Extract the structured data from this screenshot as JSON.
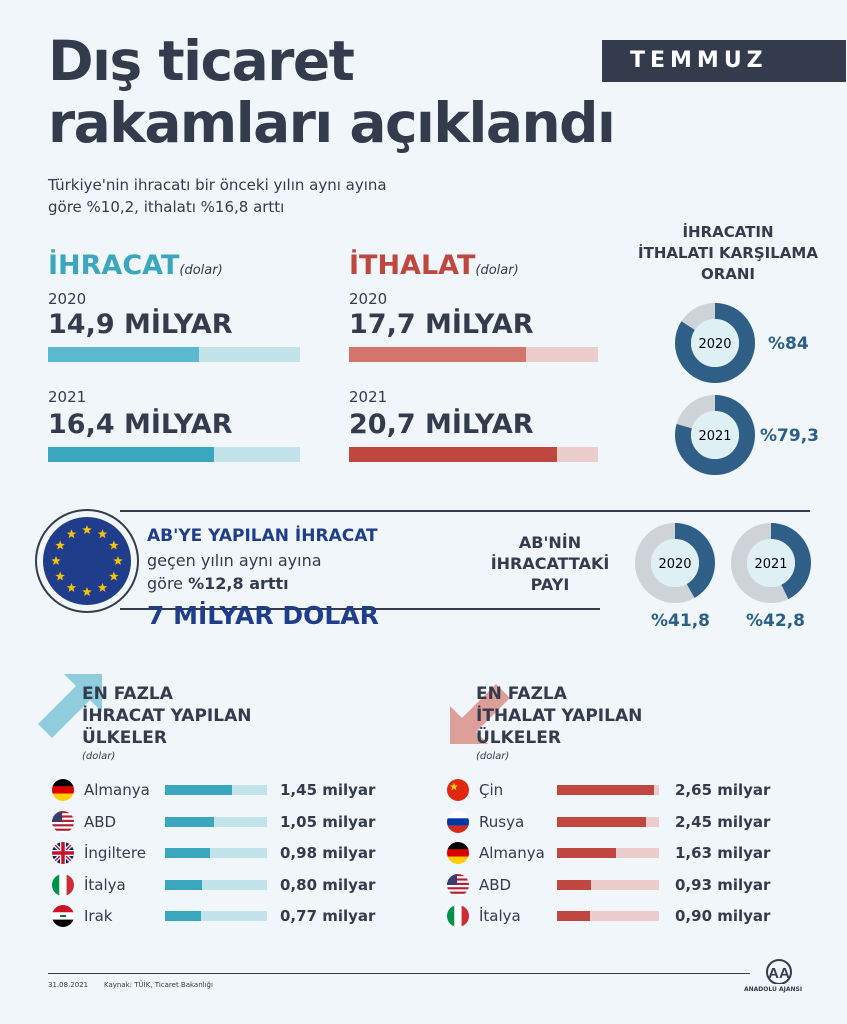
{
  "header": {
    "title_line1": "Dış ticaret",
    "title_line2": "rakamları açıklandı",
    "month": "TEMMUZ",
    "subtitle_line1": "Türkiye'nin ihracatı bir önceki yılın aynı ayına",
    "subtitle_line2": "göre %10,2, ithalatı %16,8 arttı"
  },
  "export": {
    "label": "İHRACAT",
    "unit": "(dolar)",
    "rows": [
      {
        "year": "2020",
        "amount": "14,9 MİLYAR"
      },
      {
        "year": "2021",
        "amount": "16,4 MİLYAR"
      }
    ]
  },
  "import": {
    "label": "İTHALAT",
    "unit": "(dolar)",
    "rows": [
      {
        "year": "2020",
        "amount": "17,7 MİLYAR"
      },
      {
        "year": "2021",
        "amount": "20,7 MİLYAR"
      }
    ]
  },
  "ratio": {
    "title_line1": "İHRACATIN",
    "title_line2": "İTHALATI KARŞILAMA",
    "title_line3": "ORANI",
    "items": [
      {
        "year": "2020",
        "pct_label": "%84"
      },
      {
        "year": "2021",
        "pct_label": "%79,3"
      }
    ]
  },
  "eu": {
    "title": "AB'YE YAPILAN İHRACAT",
    "text_line1": "geçen yılın aynı ayına",
    "text_line2_prefix": "göre ",
    "text_line2_bold": "%12,8 arttı",
    "big": "7 MİLYAR DOLAR",
    "share_line1": "AB'NİN",
    "share_line2": "İHRACATTAKİ",
    "share_line3": "PAYI",
    "share_items": [
      {
        "year": "2020",
        "pct_label": "%41,8"
      },
      {
        "year": "2021",
        "pct_label": "%42,8"
      }
    ]
  },
  "top_export": {
    "title_line1": "EN FAZLA",
    "title_line2": "İHRACAT YAPILAN",
    "title_line3": "ÜLKELER",
    "unit": "(dolar)",
    "countries": [
      {
        "name": "Almanya",
        "value_label": "1,45 milyar",
        "flag": "germany-flag-icon"
      },
      {
        "name": "ABD",
        "value_label": "1,05 milyar",
        "flag": "usa-flag-icon"
      },
      {
        "name": "İngiltere",
        "value_label": "0,98 milyar",
        "flag": "uk-flag-icon"
      },
      {
        "name": "İtalya",
        "value_label": "0,80 milyar",
        "flag": "italy-flag-icon"
      },
      {
        "name": "Irak",
        "value_label": "0,77 milyar",
        "flag": "iraq-flag-icon"
      }
    ]
  },
  "top_import": {
    "title_line1": "EN FAZLA",
    "title_line2": "İTHALAT YAPILAN",
    "title_line3": "ÜLKELER",
    "unit": "(dolar)",
    "countries": [
      {
        "name": "Çin",
        "value_label": "2,65 milyar",
        "flag": "china-flag-icon"
      },
      {
        "name": "Rusya",
        "value_label": "2,45 milyar",
        "flag": "russia-flag-icon"
      },
      {
        "name": "Almanya",
        "value_label": "1,63 milyar",
        "flag": "germany-flag-icon"
      },
      {
        "name": "ABD",
        "value_label": "0,93 milyar",
        "flag": "usa-flag-icon"
      },
      {
        "name": "İtalya",
        "value_label": "0,90 milyar",
        "flag": "italy-flag-icon"
      }
    ]
  },
  "footer": {
    "date": "31.08.2021",
    "source": "Kaynak: TÜİK, Ticaret Bakanlığı",
    "logo_text": "ANADOLU AJANSI"
  },
  "colors": {
    "navy": "#333b4d",
    "export_blue": "#3aa7bf",
    "export_blue_light": "#c3e3ea",
    "export_blue_2020": "#5bb9cf",
    "import_red": "#c04740",
    "import_red_2020": "#d4756d",
    "import_red_light": "#ebcdcc",
    "donut_blue": "#2f5f86",
    "donut_grey": "#cdd3d6",
    "eu_blue": "#1f3d8a"
  },
  "chart_data": [
    {
      "type": "bar",
      "title": "İHRACAT",
      "categories": [
        "2020",
        "2021"
      ],
      "values": [
        14.9,
        16.4
      ],
      "unit": "milyar dolar"
    },
    {
      "type": "bar",
      "title": "İTHALAT",
      "categories": [
        "2020",
        "2021"
      ],
      "values": [
        17.7,
        20.7
      ],
      "unit": "milyar dolar"
    },
    {
      "type": "pie",
      "title": "İHRACATIN İTHALATI KARŞILAMA ORANI",
      "categories": [
        "2020",
        "2021"
      ],
      "values": [
        84,
        79.3
      ]
    },
    {
      "type": "pie",
      "title": "AB'NİN İHRACATTAKİ PAYI",
      "categories": [
        "2020",
        "2021"
      ],
      "values": [
        41.8,
        42.8
      ]
    },
    {
      "type": "bar",
      "title": "EN FAZLA İHRACAT YAPILAN ÜLKELER",
      "categories": [
        "Almanya",
        "ABD",
        "İngiltere",
        "İtalya",
        "Irak"
      ],
      "values": [
        1.45,
        1.05,
        0.98,
        0.8,
        0.77
      ],
      "unit": "milyar"
    },
    {
      "type": "bar",
      "title": "EN FAZLA İTHALAT YAPILAN ÜLKELER",
      "categories": [
        "Çin",
        "Rusya",
        "Almanya",
        "ABD",
        "İtalya"
      ],
      "values": [
        2.65,
        2.45,
        1.63,
        0.93,
        0.9
      ],
      "unit": "milyar"
    }
  ]
}
